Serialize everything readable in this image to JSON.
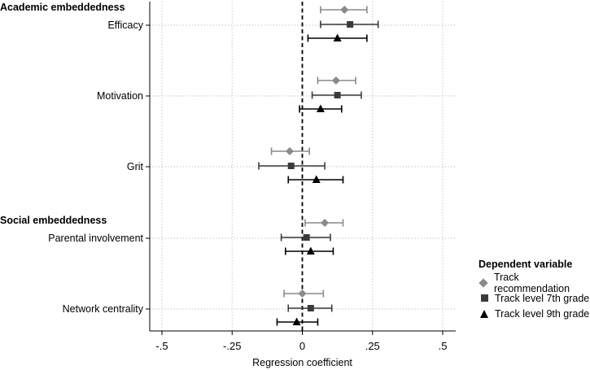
{
  "chart_data": {
    "type": "coefficient-plot",
    "xlabel": "Regression coefficient",
    "xlim": [
      -0.5,
      0.5
    ],
    "xticks": [
      {
        "value": -0.5,
        "label": "-.5"
      },
      {
        "value": -0.25,
        "label": "-.25"
      },
      {
        "value": 0,
        "label": "0"
      },
      {
        "value": 0.25,
        "label": ".25"
      },
      {
        "value": 0.5,
        "label": ".5"
      }
    ],
    "reference_line": 0,
    "groups": [
      {
        "label": "Academic embeddedness",
        "before": "Efficacy"
      },
      {
        "label": "Social embeddedness",
        "before": "Parental involvement"
      }
    ],
    "categories": [
      "Efficacy",
      "Motivation",
      "Grit",
      "Parental involvement",
      "Network centrality"
    ],
    "series": [
      {
        "name": "Track recommendation",
        "marker": "diamond",
        "color": "#8a8a8a",
        "estimates": [
          0.15,
          0.12,
          -0.045,
          0.08,
          0.0
        ],
        "ci_low": [
          0.065,
          0.055,
          -0.11,
          0.01,
          -0.065
        ],
        "ci_high": [
          0.23,
          0.19,
          0.025,
          0.145,
          0.075
        ]
      },
      {
        "name": "Track level 7th grade",
        "marker": "square",
        "color": "#3a3a3a",
        "estimates": [
          0.17,
          0.125,
          -0.04,
          0.015,
          0.03
        ],
        "ci_low": [
          0.065,
          0.035,
          -0.155,
          -0.075,
          -0.05
        ],
        "ci_high": [
          0.27,
          0.21,
          0.08,
          0.1,
          0.105
        ]
      },
      {
        "name": "Track level 9th grade",
        "marker": "triangle",
        "color": "#000000",
        "estimates": [
          0.125,
          0.065,
          0.05,
          0.03,
          -0.02
        ],
        "ci_low": [
          0.02,
          -0.01,
          -0.05,
          -0.06,
          -0.09
        ],
        "ci_high": [
          0.23,
          0.14,
          0.145,
          0.11,
          0.055
        ]
      }
    ],
    "legend": {
      "title": "Dependent variable",
      "position": "bottom-right"
    }
  }
}
